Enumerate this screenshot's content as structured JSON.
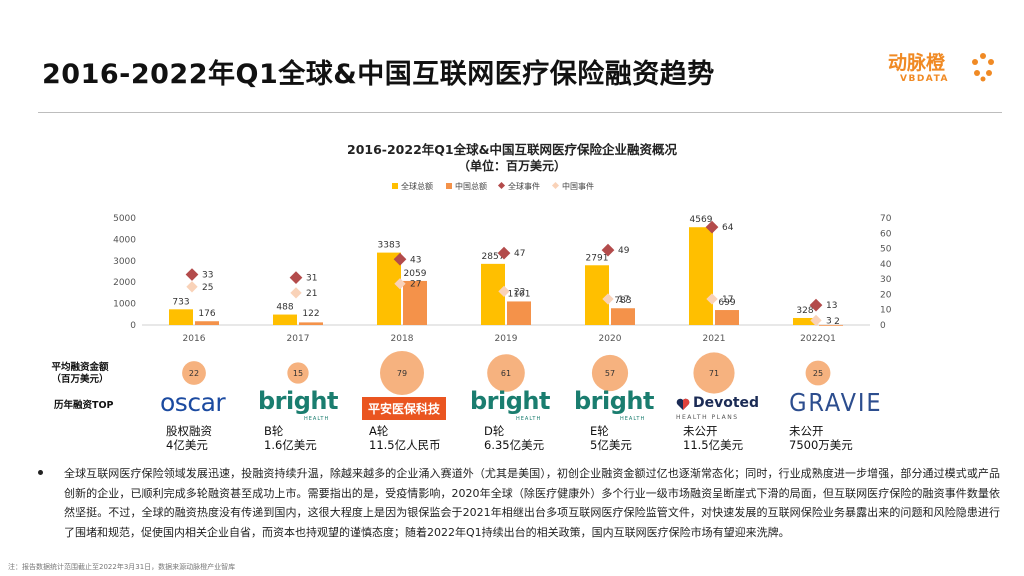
{
  "page": {
    "title": "2016-2022年Q1全球&中国互联网医疗保险融资趋势",
    "logo_cn": "动脉橙",
    "logo_en": "VBDATA",
    "accent_color": "#f08a24"
  },
  "chart_data": {
    "type": "bar",
    "title": "2016-2022年Q1全球&中国互联网医疗保险企业融资概况",
    "subtitle": "（单位：百万美元）",
    "categories": [
      "2016",
      "2017",
      "2018",
      "2019",
      "2020",
      "2021",
      "2022Q1"
    ],
    "legend_position": "top",
    "grid": false,
    "series": [
      {
        "name": "全球总额",
        "kind": "bar",
        "axis": "left",
        "color": "#ffbf00",
        "values": [
          733,
          488,
          3383,
          2857,
          2791,
          4569,
          328
        ]
      },
      {
        "name": "中国总额",
        "kind": "bar",
        "axis": "left",
        "color": "#f4924a",
        "values": [
          176,
          122,
          2059,
          1101,
          783,
          699,
          2
        ]
      },
      {
        "name": "全球事件",
        "kind": "marker",
        "axis": "right",
        "color": "#b34b4b",
        "values": [
          33,
          31,
          43,
          47,
          49,
          64,
          13
        ]
      },
      {
        "name": "中国事件",
        "kind": "marker",
        "axis": "right",
        "color": "#f9d2b8",
        "values": [
          25,
          21,
          27,
          22,
          17,
          17,
          3
        ]
      }
    ],
    "y_left": {
      "min": 0,
      "max": 5000,
      "ticks": [
        0,
        1000,
        2000,
        3000,
        4000,
        5000
      ]
    },
    "y_right": {
      "min": 0,
      "max": 70,
      "ticks": [
        0,
        10,
        20,
        30,
        40,
        50,
        60,
        70
      ]
    },
    "avg_row_label": [
      "平均融资金额",
      "（百万美元）"
    ],
    "avg_values": [
      22,
      15,
      79,
      61,
      57,
      71,
      25
    ],
    "avg_color": "#f5a468"
  },
  "top_deals": {
    "row_label": "历年融资TOP",
    "items": [
      {
        "company": "oscar",
        "round": "股权融资",
        "amount": "4亿美元"
      },
      {
        "company": "bright",
        "sub": "HEALTH",
        "round": "B轮",
        "amount": "1.6亿美元"
      },
      {
        "company": "平安医保科技",
        "round": "A轮",
        "amount": "11.5亿人民币"
      },
      {
        "company": "bright",
        "sub": "HEALTH",
        "round": "D轮",
        "amount": "6.35亿美元"
      },
      {
        "company": "bright",
        "sub": "HEALTH",
        "round": "E轮",
        "amount": "5亿美元"
      },
      {
        "company": "Devoted",
        "sub": "HEALTH PLANS",
        "round": "未公开",
        "amount": "11.5亿美元"
      },
      {
        "company": "GRAVIE",
        "round": "未公开",
        "amount": "7500万美元"
      }
    ]
  },
  "summary": "全球互联网医疗保险领域发展迅速，投融资持续升温，除越来越多的企业涌入赛道外（尤其是美国），初创企业融资金额过亿也逐渐常态化；同时，行业成熟度进一步增强，部分通过模式或产品创新的企业，已顺利完成多轮融资甚至成功上市。需要指出的是，受疫情影响，2020年全球（除医疗健康外）多个行业一级市场融资呈断崖式下滑的局面，但互联网医疗保险的融资事件数量依然坚挺。不过，全球的融资热度没有传递到国内，这很大程度上是因为银保监会于2021年相继出台多项互联网医疗保险监管文件，对快速发展的互联网保险业务暴露出来的问题和风险隐患进行了围堵和规范，促使国内相关企业自省，而资本也持观望的谨慎态度；随着2022年Q1持续出台的相关政策，国内互联网医疗保险市场有望迎来洗牌。",
  "footnote": "注：报告数据统计范围截止至2022年3月31日，数据来源动脉橙产业智库"
}
